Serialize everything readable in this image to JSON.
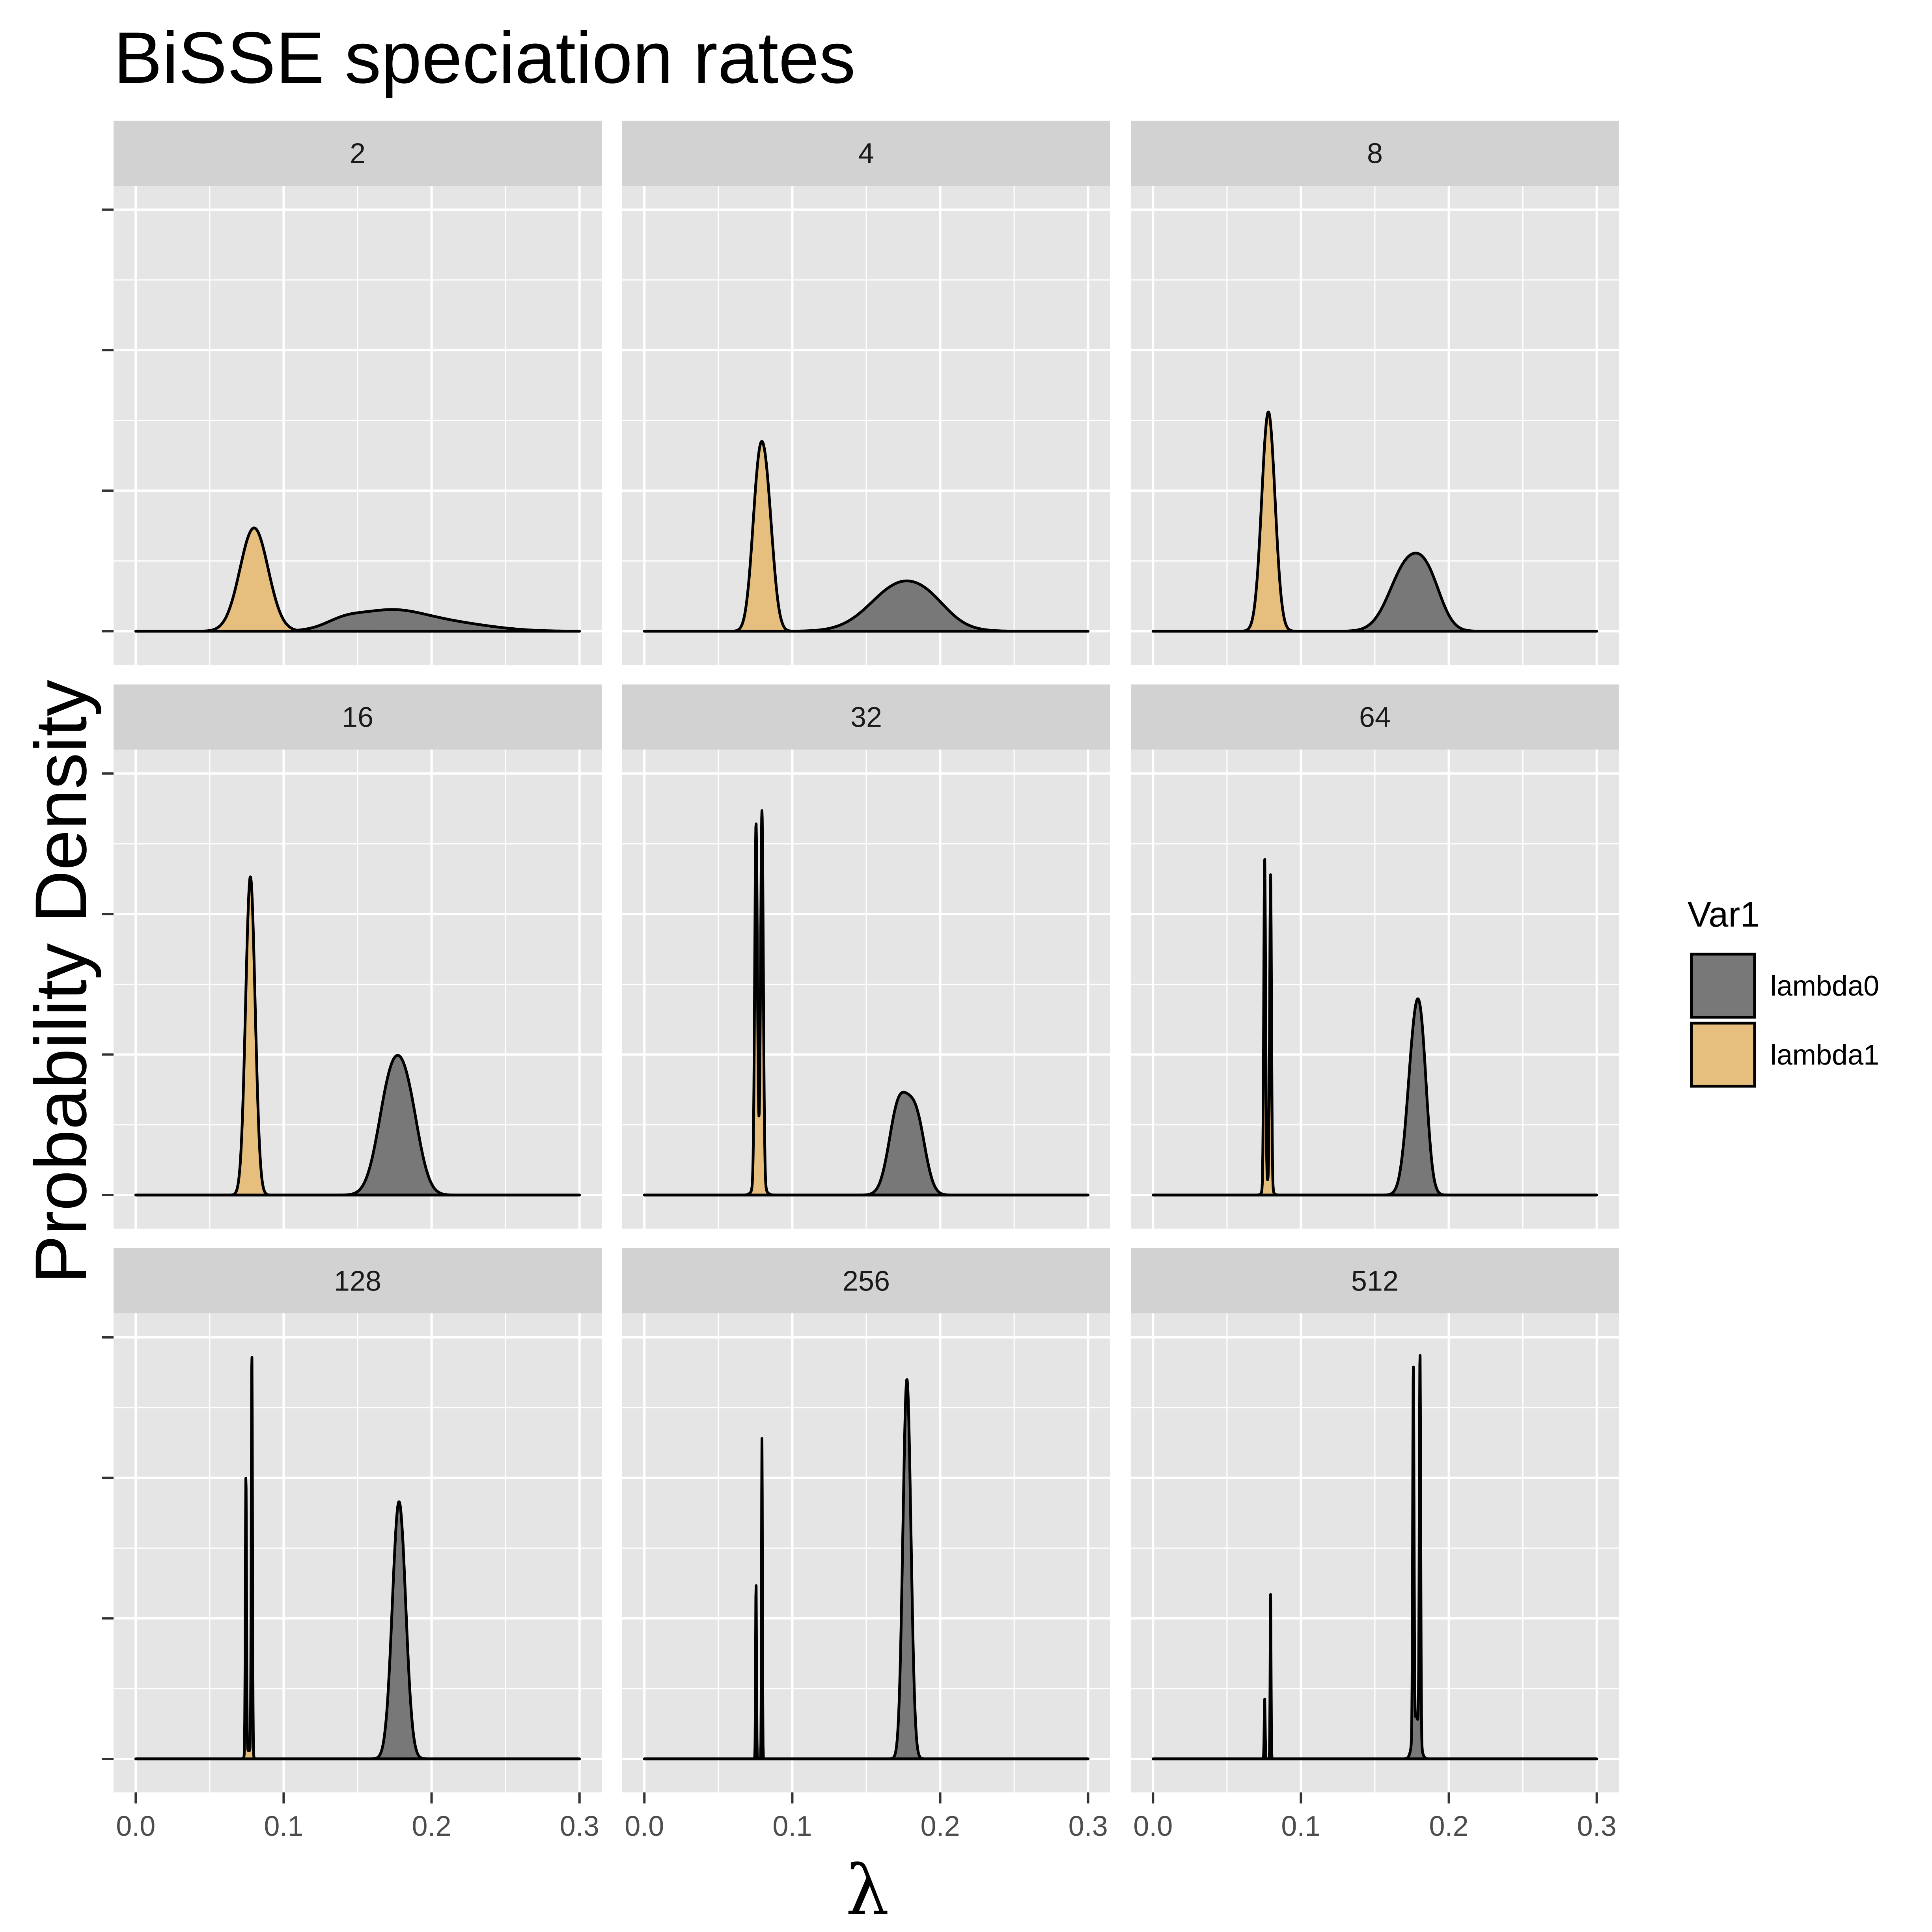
{
  "chart_data": {
    "type": "area",
    "title": "BiSSE speciation rates",
    "xlabel": "λ",
    "ylabel": "Probability Density",
    "xlim": [
      -0.015,
      0.315
    ],
    "x_ticks": [
      0.0,
      0.1,
      0.2,
      0.3
    ],
    "x_tick_labels": [
      "0.0",
      "0.1",
      "0.2",
      "0.3"
    ],
    "y_ticks_count": 4,
    "grid": true,
    "legend": {
      "title": "Var1",
      "position": "right",
      "entries": [
        {
          "label": "lambda0",
          "color": "#787878"
        },
        {
          "label": "lambda1",
          "color": "#E6BE7D"
        }
      ]
    },
    "facets": [
      {
        "label": "2",
        "ymax": 1.0,
        "series": [
          {
            "name": "lambda0",
            "components": [
              {
                "mean": 0.17,
                "sd": 0.024,
                "h": 0.045
              },
              {
                "mean": 0.213,
                "sd": 0.028,
                "h": 0.018
              },
              {
                "mean": 0.14,
                "sd": 0.012,
                "h": 0.015
              }
            ]
          },
          {
            "name": "lambda1",
            "components": [
              {
                "mean": 0.08,
                "sd": 0.0095,
                "h": 0.245
              }
            ]
          }
        ]
      },
      {
        "label": "4",
        "ymax": 1.0,
        "series": [
          {
            "name": "lambda0",
            "components": [
              {
                "mean": 0.175,
                "sd": 0.021,
                "h": 0.115
              },
              {
                "mean": 0.195,
                "sd": 0.012,
                "h": 0.015
              }
            ]
          },
          {
            "name": "lambda1",
            "components": [
              {
                "mean": 0.077,
                "sd": 0.0045,
                "h": 0.31
              },
              {
                "mean": 0.083,
                "sd": 0.0045,
                "h": 0.25
              }
            ]
          }
        ]
      },
      {
        "label": "8",
        "ymax": 1.0,
        "series": [
          {
            "name": "lambda0",
            "components": [
              {
                "mean": 0.172,
                "sd": 0.012,
                "h": 0.155
              },
              {
                "mean": 0.187,
                "sd": 0.009,
                "h": 0.08
              }
            ]
          },
          {
            "name": "lambda1",
            "components": [
              {
                "mean": 0.078,
                "sd": 0.0045,
                "h": 0.52
              }
            ]
          }
        ]
      },
      {
        "label": "16",
        "ymax": 1.0,
        "series": [
          {
            "name": "lambda0",
            "components": [
              {
                "mean": 0.172,
                "sd": 0.0085,
                "h": 0.24
              },
              {
                "mean": 0.184,
                "sd": 0.008,
                "h": 0.19
              }
            ]
          },
          {
            "name": "lambda1",
            "components": [
              {
                "mean": 0.0775,
                "sd": 0.0032,
                "h": 0.755
              }
            ]
          }
        ]
      },
      {
        "label": "32",
        "ymax": 1.0,
        "series": [
          {
            "name": "lambda0",
            "components": [
              {
                "mean": 0.172,
                "sd": 0.0065,
                "h": 0.21
              },
              {
                "mean": 0.184,
                "sd": 0.006,
                "h": 0.17
              }
            ]
          },
          {
            "name": "lambda1",
            "components": [
              {
                "mean": 0.0755,
                "sd": 0.0009,
                "h": 0.85
              },
              {
                "mean": 0.0795,
                "sd": 0.0009,
                "h": 0.88
              },
              {
                "mean": 0.0775,
                "sd": 0.003,
                "h": 0.04
              }
            ]
          }
        ]
      },
      {
        "label": "64",
        "ymax": 1.0,
        "series": [
          {
            "name": "lambda0",
            "components": [
              {
                "mean": 0.177,
                "sd": 0.0052,
                "h": 0.355
              },
              {
                "mean": 0.182,
                "sd": 0.004,
                "h": 0.18
              }
            ]
          },
          {
            "name": "lambda1",
            "components": [
              {
                "mean": 0.0755,
                "sd": 0.0006,
                "h": 0.78
              },
              {
                "mean": 0.0795,
                "sd": 0.0006,
                "h": 0.74
              },
              {
                "mean": 0.0775,
                "sd": 0.0022,
                "h": 0.03
              }
            ]
          }
        ]
      },
      {
        "label": "128",
        "ymax": 1.0,
        "series": [
          {
            "name": "lambda0",
            "components": [
              {
                "mean": 0.178,
                "sd": 0.0045,
                "h": 0.61
              }
            ]
          },
          {
            "name": "lambda1",
            "components": [
              {
                "mean": 0.0745,
                "sd": 0.0004,
                "h": 0.665
              },
              {
                "mean": 0.0785,
                "sd": 0.0004,
                "h": 0.955
              },
              {
                "mean": 0.0765,
                "sd": 0.0016,
                "h": 0.02
              }
            ]
          }
        ]
      },
      {
        "label": "256",
        "ymax": 1.0,
        "series": [
          {
            "name": "lambda0",
            "components": [
              {
                "mean": 0.1775,
                "sd": 0.0027,
                "h": 0.9
              }
            ]
          },
          {
            "name": "lambda1",
            "components": [
              {
                "mean": 0.0755,
                "sd": 0.0003,
                "h": 0.42
              },
              {
                "mean": 0.0795,
                "sd": 0.0003,
                "h": 0.76
              }
            ]
          }
        ]
      },
      {
        "label": "512",
        "ymax": 1.0,
        "series": [
          {
            "name": "lambda0",
            "components": [
              {
                "mean": 0.176,
                "sd": 0.00045,
                "h": 0.87
              },
              {
                "mean": 0.1805,
                "sd": 0.00045,
                "h": 0.915
              },
              {
                "mean": 0.178,
                "sd": 0.0022,
                "h": 0.1
              }
            ]
          },
          {
            "name": "lambda1",
            "components": [
              {
                "mean": 0.0755,
                "sd": 0.0003,
                "h": 0.145
              },
              {
                "mean": 0.0795,
                "sd": 0.0003,
                "h": 0.39
              }
            ]
          }
        ]
      }
    ]
  },
  "colors": {
    "panel_bg": "#E5E5E5",
    "strip_bg": "#D2D2D2",
    "grid": "#FFFFFF",
    "lambda0_fill": "#787878",
    "lambda1_fill": "#E6BE7D",
    "outline": "#000000"
  }
}
